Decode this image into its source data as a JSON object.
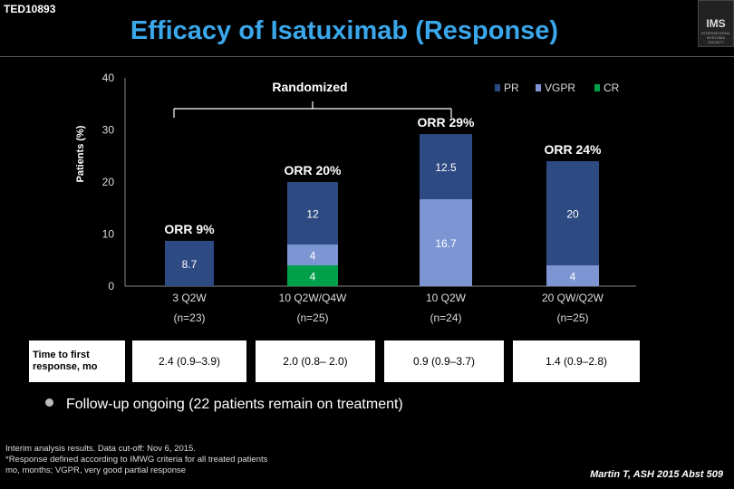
{
  "header": {
    "code": "TED10893",
    "title": "Efficacy of Isatuximab (Response)",
    "logo_text": "IMS",
    "logo_subtext": "INTERNATIONAL MYELOMA SOCIETY"
  },
  "chart_data": {
    "type": "bar",
    "stacked": true,
    "ylabel": "Patients (%)",
    "ylim": [
      0,
      40
    ],
    "yticks": [
      "40",
      "30",
      "20",
      "10",
      "0"
    ],
    "legend_position": "top-right",
    "categories": [
      "3 Q2W",
      "10 Q2W/Q4W",
      "10 Q2W",
      "20 QW/Q2W"
    ],
    "category_n": [
      "(n=23)",
      "(n=25)",
      "(n=24)",
      "(n=25)"
    ],
    "series": [
      {
        "name": "CR",
        "color": "#00a04a",
        "values": [
          0,
          4,
          0,
          0
        ],
        "labels": [
          "",
          "4",
          "",
          ""
        ]
      },
      {
        "name": "VGPR",
        "color": "#7d95d3",
        "values": [
          0,
          4,
          16.7,
          4
        ],
        "labels": [
          "",
          "4",
          "16.7",
          "4"
        ]
      },
      {
        "name": "PR",
        "color": "#2e4a82",
        "values": [
          8.7,
          12,
          12.5,
          20
        ],
        "labels": [
          "8.7",
          "12",
          "12.5",
          "20"
        ]
      }
    ],
    "orr_labels": [
      "ORR 9%",
      "ORR 20%",
      "ORR 29%",
      "ORR 24%"
    ],
    "annotation": "Randomized"
  },
  "response_table": {
    "header": "Time to first response, mo",
    "values": [
      "2.4 (0.9–3.9)",
      "2.0 (0.8– 2.0)",
      "0.9 (0.9–3.7)",
      "1.4 (0.9–2.8)"
    ]
  },
  "bullet": "Follow-up ongoing (22 patients remain on treatment)",
  "footnote": [
    "Interim analysis results. Data cut-off: Nov 6, 2015.",
    "*Response defined according to IMWG criteria for all treated patients",
    "mo, months; VGPR, very good partial response"
  ],
  "citation": "Martin T, ASH 2015 Abst 509"
}
